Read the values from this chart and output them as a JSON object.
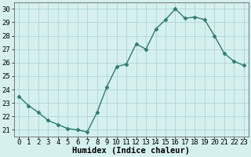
{
  "x": [
    0,
    1,
    2,
    3,
    4,
    5,
    6,
    7,
    8,
    9,
    10,
    11,
    12,
    13,
    14,
    15,
    16,
    17,
    18,
    19,
    20,
    21,
    22,
    23
  ],
  "y": [
    23.5,
    22.8,
    22.3,
    21.7,
    21.4,
    21.1,
    21.0,
    20.85,
    22.3,
    24.2,
    25.7,
    25.9,
    27.4,
    27.0,
    28.5,
    29.2,
    30.0,
    29.3,
    29.4,
    29.2,
    28.0,
    26.7,
    26.1,
    25.8
  ],
  "line_color": "#2d7d6e",
  "marker": "D",
  "marker_size": 2.5,
  "bg_color": "#d6f0f0",
  "grid_color": "#aed4d4",
  "xlabel": "Humidex (Indice chaleur)",
  "ylim": [
    20.5,
    30.5
  ],
  "xlim": [
    -0.5,
    23.5
  ],
  "yticks": [
    21,
    22,
    23,
    24,
    25,
    26,
    27,
    28,
    29,
    30
  ],
  "xticks": [
    0,
    1,
    2,
    3,
    4,
    5,
    6,
    7,
    8,
    9,
    10,
    11,
    12,
    13,
    14,
    15,
    16,
    17,
    18,
    19,
    20,
    21,
    22,
    23
  ],
  "xlabel_fontsize": 7.5,
  "tick_fontsize": 6.5,
  "line_width": 1.0
}
